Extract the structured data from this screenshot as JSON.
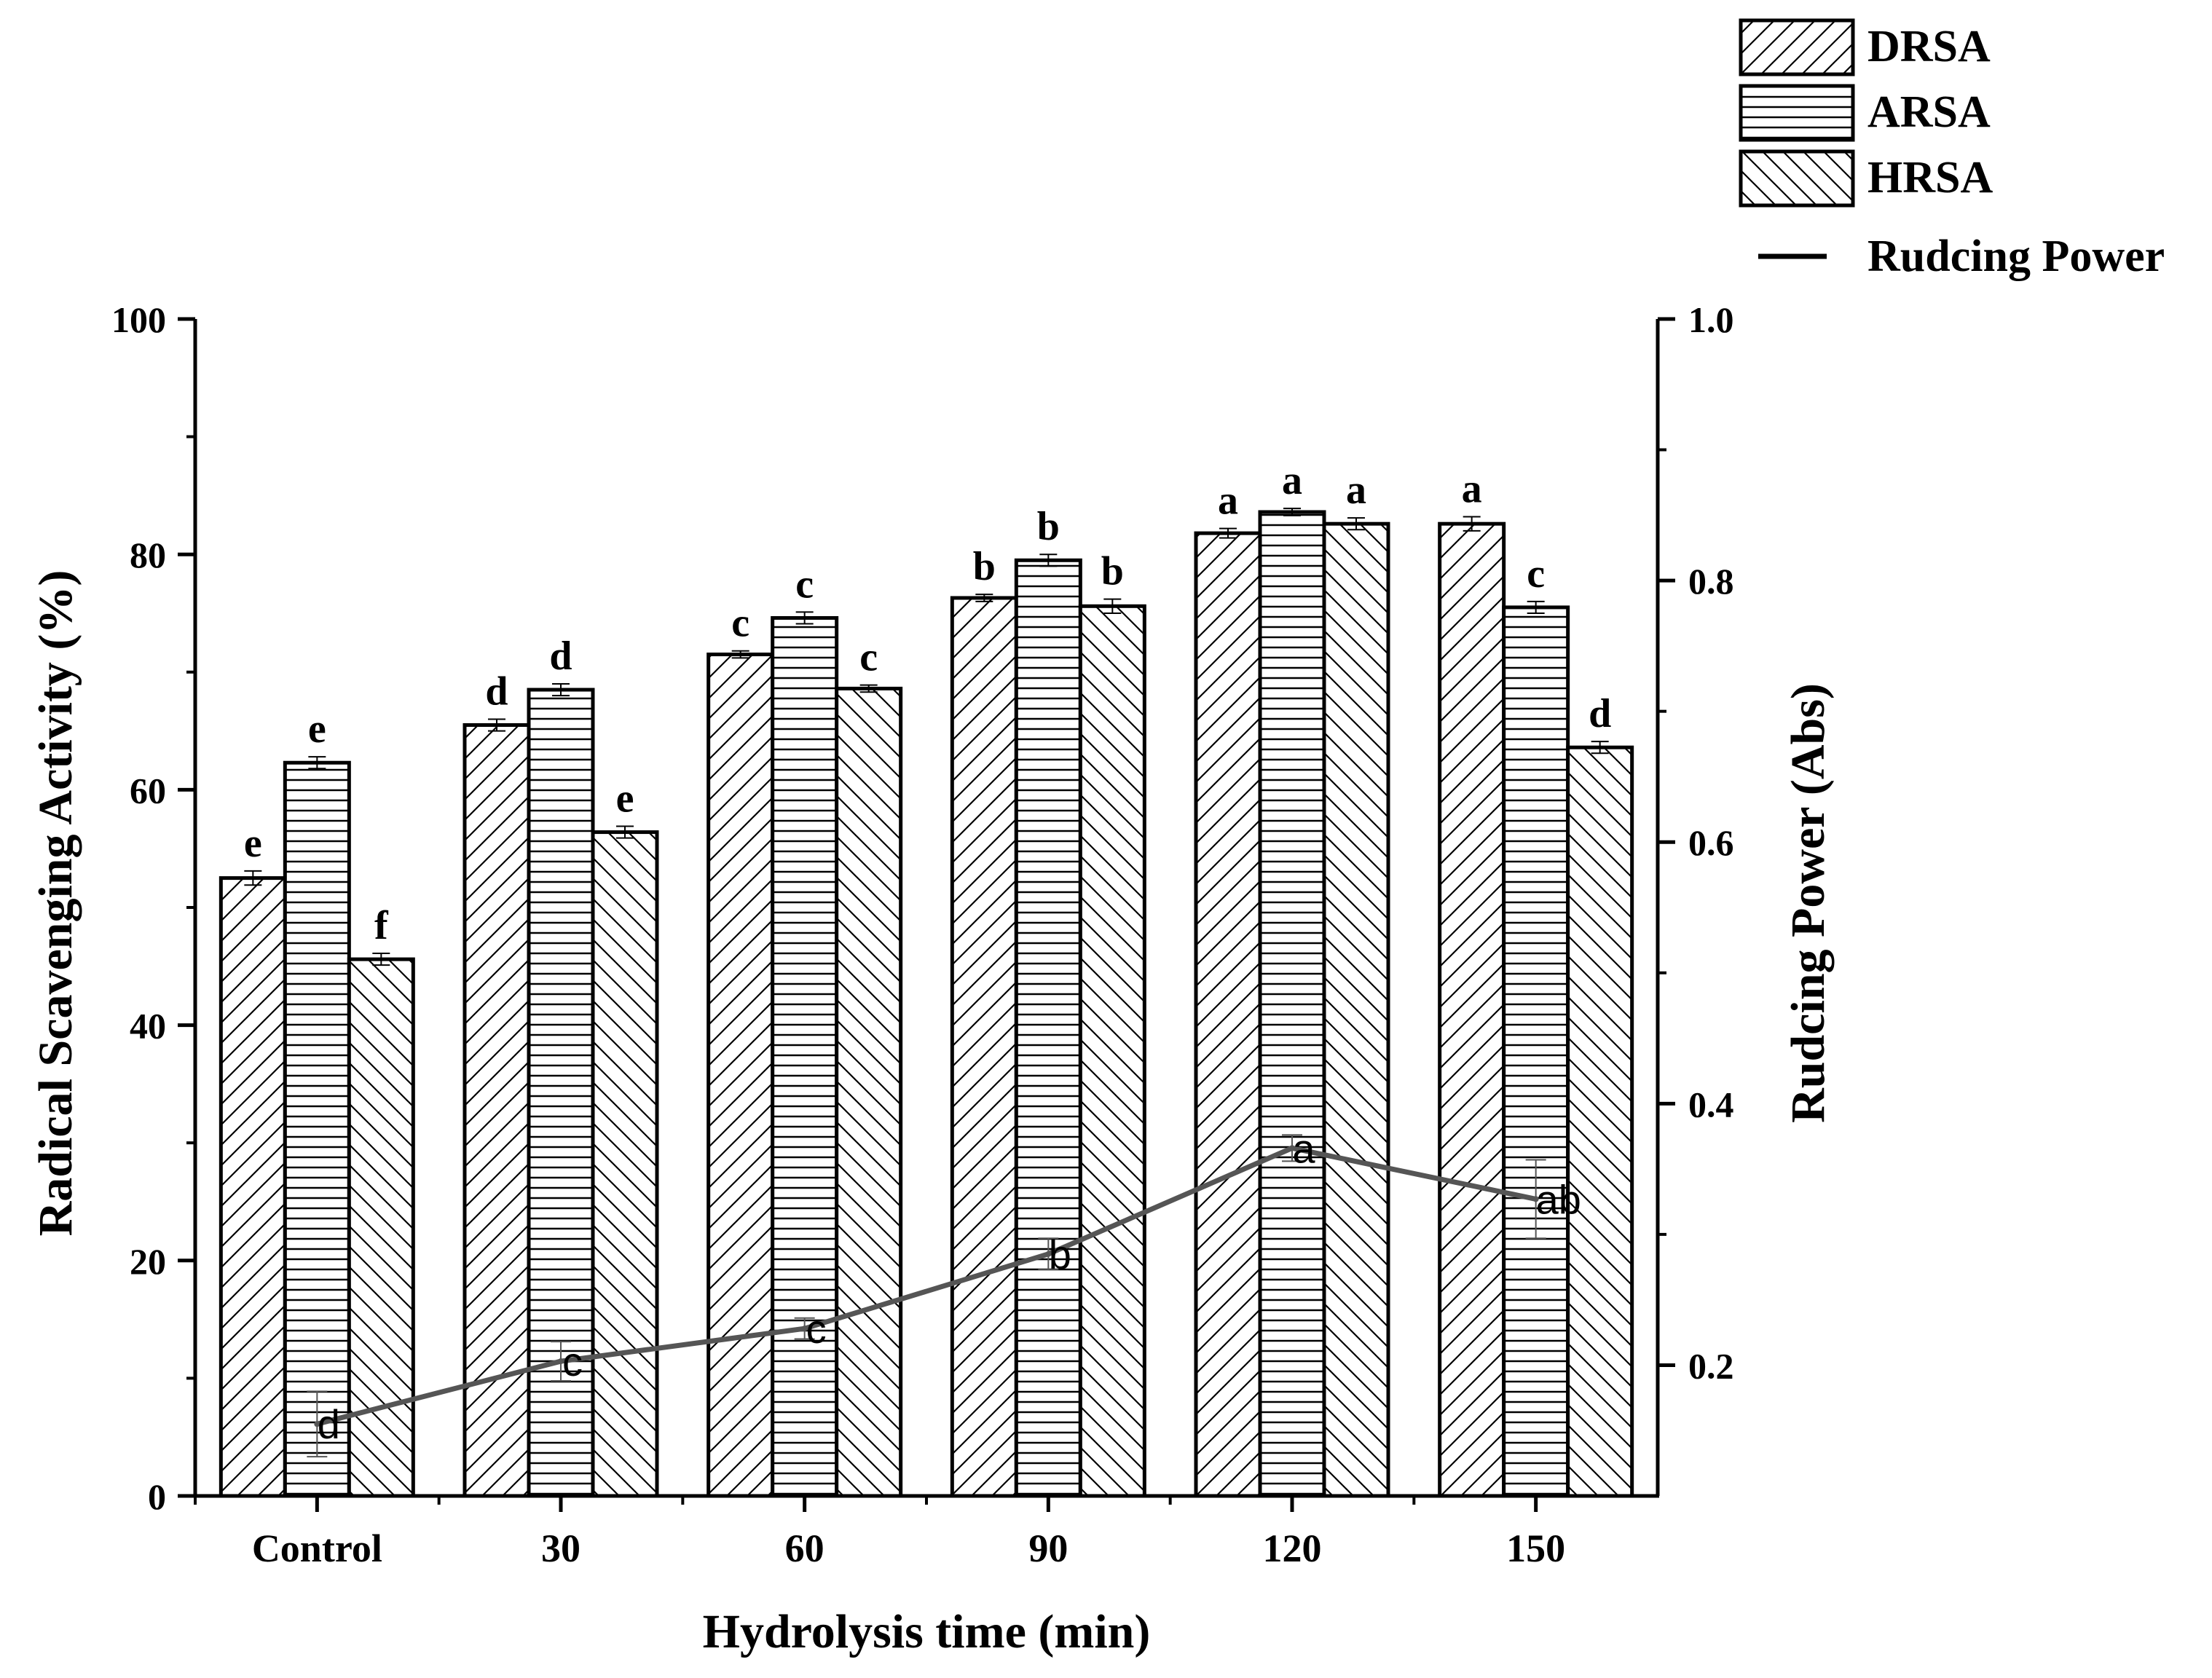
{
  "chart_data": {
    "type": "bar",
    "xlabel": "Hydrolysis time (min)",
    "ylabel": "Radical Scavenging Activity (%)",
    "ylabel_right": "Rudcing Power (Abs)",
    "categories": [
      "Control",
      "30",
      "60",
      "90",
      "120",
      "150"
    ],
    "ylim": [
      0,
      100
    ],
    "yticks": [
      "0",
      "20",
      "40",
      "60",
      "80",
      "100"
    ],
    "ylim_right": [
      0.1,
      1.0
    ],
    "yticks_right": [
      "0.2",
      "0.4",
      "0.6",
      "0.8",
      "1.0"
    ],
    "series": [
      {
        "name": "DRSA",
        "pattern": "diag-right",
        "values": [
          52.5,
          65.5,
          71.5,
          76.3,
          81.8,
          82.6
        ],
        "errors": [
          0.6,
          0.5,
          0.3,
          0.3,
          0.4,
          0.6
        ],
        "letters": [
          "e",
          "d",
          "c",
          "b",
          "a",
          "a"
        ]
      },
      {
        "name": "ARSA",
        "pattern": "horizontal",
        "values": [
          62.3,
          68.5,
          74.6,
          79.5,
          83.6,
          75.5
        ],
        "errors": [
          0.5,
          0.5,
          0.5,
          0.5,
          0.3,
          0.5
        ],
        "letters": [
          "e",
          "d",
          "c",
          "b",
          "a",
          "c"
        ]
      },
      {
        "name": "HRSA",
        "pattern": "diag-left",
        "values": [
          45.6,
          56.4,
          68.6,
          75.6,
          82.6,
          63.6
        ],
        "errors": [
          0.5,
          0.5,
          0.3,
          0.6,
          0.5,
          0.5
        ],
        "letters": [
          "f",
          "e",
          "c",
          "b",
          "a",
          "d"
        ]
      }
    ],
    "line_series": {
      "name": "Rudcing Power",
      "axis": "right",
      "color": "#555555",
      "values": [
        0.155,
        0.203,
        0.228,
        0.285,
        0.366,
        0.327
      ],
      "errors": [
        0.025,
        0.015,
        0.008,
        0.012,
        0.01,
        0.03
      ],
      "letters": [
        "d",
        "c",
        "c",
        "b",
        "a",
        "ab"
      ]
    },
    "legend": [
      "DRSA",
      "ARSA",
      "HRSA",
      "Rudcing Power"
    ],
    "legend_position": "top-right"
  }
}
